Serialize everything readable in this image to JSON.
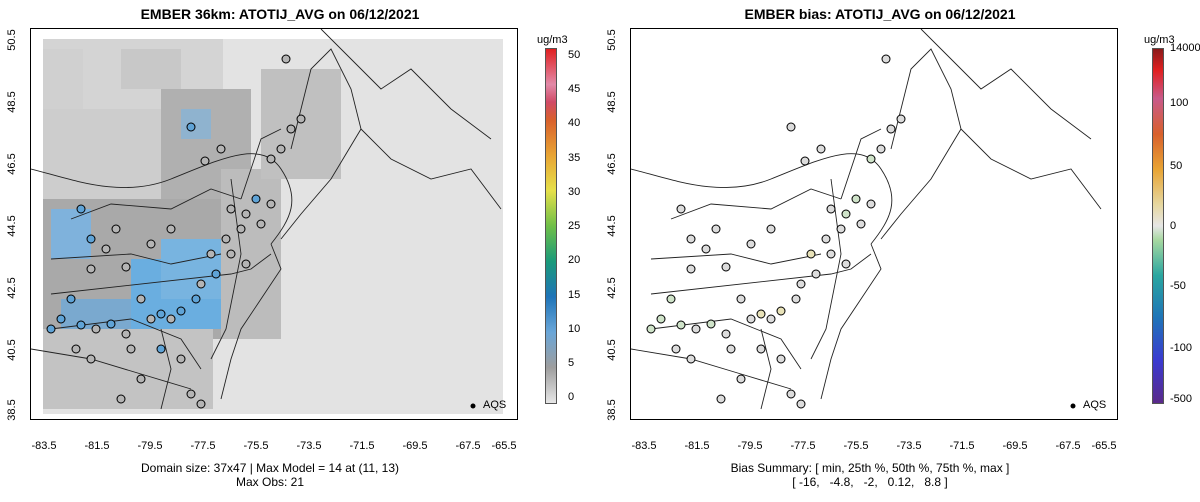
{
  "left_panel": {
    "title": "EMBER 36km: ATOTIJ_AVG on 06/12/2021",
    "colorbar_unit": "ug/m3",
    "colorbar_ticks": [
      "50",
      "45",
      "40",
      "35",
      "30",
      "25",
      "20",
      "15",
      "10",
      "5",
      "0"
    ],
    "caption_line1": "Domain size: 37x47 | Max Model = 14 at (11, 13)",
    "caption_line2": "Max Obs: 21",
    "legend_label": "AQS"
  },
  "right_panel": {
    "title": "EMBER bias: ATOTIJ_AVG on 06/12/2021",
    "colorbar_unit": "ug/m3",
    "colorbar_ticks": [
      "14000",
      "100",
      "50",
      "0",
      "-50",
      "-100",
      "-500"
    ],
    "caption_line1": "Bias Summary: [ min, 25th %, 50th %, 75th %, max ]",
    "caption_line2": "[ -16,   -4.8,   -2,   0.12,   8.8 ]",
    "legend_label": "AQS"
  },
  "axes": {
    "y_ticks": [
      "50.5",
      "48.5",
      "46.5",
      "44.5",
      "42.5",
      "40.5",
      "38.5"
    ],
    "x_ticks": [
      "-83.5",
      "-81.5",
      "-79.5",
      "-77.5",
      "-75.5",
      "-73.5",
      "-71.5",
      "-69.5",
      "-67.5",
      "-65.5"
    ]
  },
  "colors": {
    "grid_light": "#e3e3e3",
    "grid_mid": "#c8c8c8",
    "grid_dark": "#a9a9a9",
    "grid_blue": "#6aaee0",
    "marker_gray": "#b4b4b4",
    "marker_blue": "#5fa3d6",
    "bias_neutral": "#dcdcdc",
    "bias_green": "#cfe3c9",
    "bias_yellow": "#e8e2b8"
  }
}
